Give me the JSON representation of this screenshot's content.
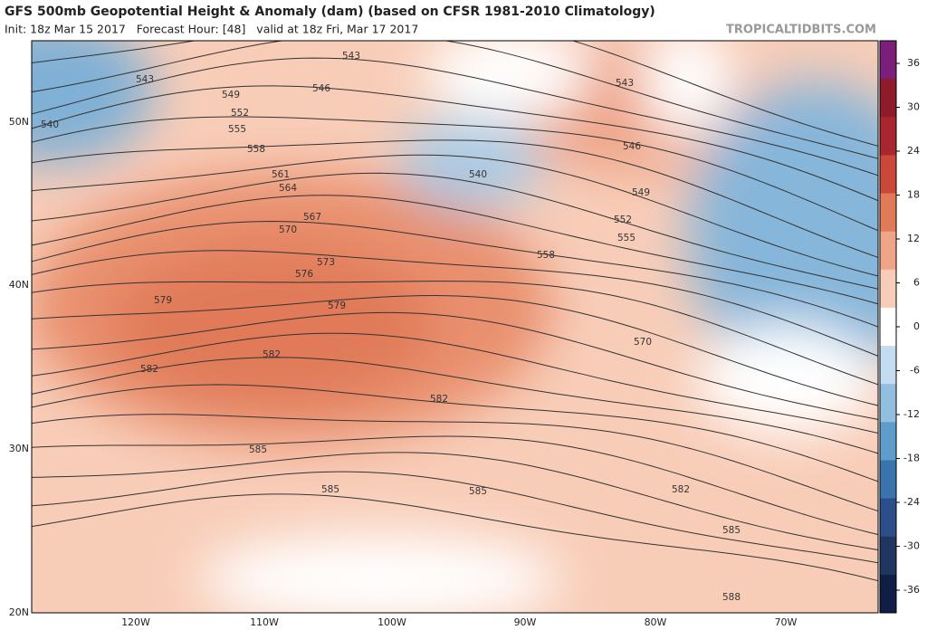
{
  "header": {
    "title": "GFS 500mb Geopotential Height & Anomaly (dam) (based on CFSR 1981-2010 Climatology)",
    "subtitle": "Init: 18z Mar 15 2017   Forecast Hour: [48]   valid at 18z Fri, Mar 17 2017",
    "site": "TROPICALTIDBITS.COM"
  },
  "latitude_labels": [
    "50N",
    "40N",
    "30N",
    "20N"
  ],
  "longitude_labels": [
    "120W",
    "110W",
    "100W",
    "90W",
    "80W",
    "70W"
  ],
  "colorbar_labels": [
    "36",
    "30",
    "24",
    "18",
    "12",
    "6",
    "0",
    "-6",
    "-12",
    "-18",
    "-24",
    "-30",
    "-36"
  ],
  "contour_labels": [
    "543",
    "543",
    "546",
    "549",
    "552",
    "555",
    "558",
    "561",
    "564",
    "567",
    "570",
    "573",
    "576",
    "579",
    "579",
    "582",
    "582",
    "582",
    "585",
    "585",
    "585",
    "570",
    "540",
    "540",
    "543",
    "546",
    "549",
    "552",
    "555",
    "558",
    "582",
    "585",
    "588"
  ]
}
